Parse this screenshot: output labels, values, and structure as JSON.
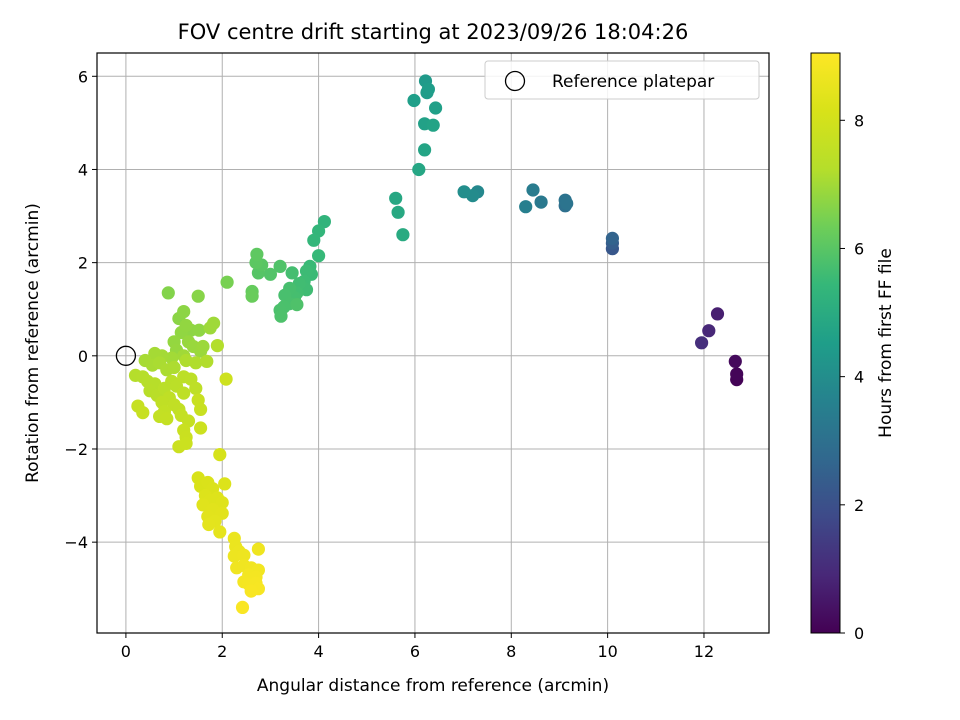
{
  "chart_data": {
    "type": "scatter",
    "title": "FOV centre drift starting at 2023/09/26 18:04:26",
    "xlabel": "Angular distance from reference (arcmin)",
    "ylabel": "Rotation from reference (arcmin)",
    "xlim": [
      -0.6,
      13.35
    ],
    "ylim": [
      -5.95,
      6.5
    ],
    "xticks": [
      0,
      2,
      4,
      6,
      8,
      10,
      12
    ],
    "yticks": [
      -4,
      -2,
      0,
      2,
      4,
      6
    ],
    "xtick_labels": [
      "0",
      "2",
      "4",
      "6",
      "8",
      "10",
      "12"
    ],
    "ytick_labels": [
      "−4",
      "−2",
      "0",
      "2",
      "4",
      "6"
    ],
    "grid": true,
    "legend": {
      "position": "top-right",
      "label": "Reference platepar"
    },
    "reference_point": {
      "x": 0,
      "y": 0
    },
    "colorbar": {
      "label": "Hours from first FF file",
      "colormap": "viridis",
      "lim": [
        0,
        9.05
      ],
      "ticks": [
        0,
        2,
        4,
        6,
        8
      ],
      "tick_labels": [
        "0",
        "2",
        "4",
        "6",
        "8"
      ]
    },
    "points": [
      {
        "x": 12.68,
        "y": -0.51,
        "c": 0.05
      },
      {
        "x": 12.68,
        "y": -0.39,
        "c": 0.1
      },
      {
        "x": 12.65,
        "y": -0.12,
        "c": 0.2
      },
      {
        "x": 12.28,
        "y": 0.9,
        "c": 0.7
      },
      {
        "x": 12.1,
        "y": 0.54,
        "c": 0.9
      },
      {
        "x": 11.95,
        "y": 0.28,
        "c": 1.1
      },
      {
        "x": 10.1,
        "y": 2.3,
        "c": 2.2
      },
      {
        "x": 10.1,
        "y": 2.42,
        "c": 2.4
      },
      {
        "x": 10.1,
        "y": 2.52,
        "c": 2.6
      },
      {
        "x": 9.12,
        "y": 3.22,
        "c": 3.0
      },
      {
        "x": 9.12,
        "y": 3.34,
        "c": 3.1
      },
      {
        "x": 9.15,
        "y": 3.27,
        "c": 3.15
      },
      {
        "x": 8.62,
        "y": 3.3,
        "c": 3.3
      },
      {
        "x": 8.45,
        "y": 3.56,
        "c": 3.4
      },
      {
        "x": 8.3,
        "y": 3.2,
        "c": 3.5
      },
      {
        "x": 7.3,
        "y": 3.52,
        "c": 3.8
      },
      {
        "x": 7.2,
        "y": 3.44,
        "c": 3.9
      },
      {
        "x": 7.02,
        "y": 3.52,
        "c": 4.0
      },
      {
        "x": 6.22,
        "y": 5.9,
        "c": 4.4
      },
      {
        "x": 6.25,
        "y": 5.65,
        "c": 4.45
      },
      {
        "x": 6.28,
        "y": 5.72,
        "c": 4.5
      },
      {
        "x": 5.98,
        "y": 5.48,
        "c": 4.55
      },
      {
        "x": 6.43,
        "y": 5.32,
        "c": 4.6
      },
      {
        "x": 6.2,
        "y": 4.98,
        "c": 4.65
      },
      {
        "x": 6.38,
        "y": 4.95,
        "c": 4.7
      },
      {
        "x": 6.2,
        "y": 4.42,
        "c": 4.75
      },
      {
        "x": 6.08,
        "y": 4.0,
        "c": 4.8
      },
      {
        "x": 5.6,
        "y": 3.38,
        "c": 4.85
      },
      {
        "x": 5.65,
        "y": 3.08,
        "c": 4.9
      },
      {
        "x": 5.75,
        "y": 2.6,
        "c": 4.95
      },
      {
        "x": 4.12,
        "y": 2.88,
        "c": 5.3
      },
      {
        "x": 4.0,
        "y": 2.68,
        "c": 5.35
      },
      {
        "x": 3.9,
        "y": 2.48,
        "c": 5.4
      },
      {
        "x": 4.0,
        "y": 2.15,
        "c": 5.45
      },
      {
        "x": 3.82,
        "y": 1.92,
        "c": 5.5
      },
      {
        "x": 3.85,
        "y": 1.75,
        "c": 5.52
      },
      {
        "x": 3.75,
        "y": 1.82,
        "c": 5.55
      },
      {
        "x": 3.7,
        "y": 1.6,
        "c": 5.58
      },
      {
        "x": 3.75,
        "y": 1.42,
        "c": 5.6
      },
      {
        "x": 3.6,
        "y": 1.55,
        "c": 5.62
      },
      {
        "x": 3.55,
        "y": 1.35,
        "c": 5.65
      },
      {
        "x": 3.45,
        "y": 1.78,
        "c": 5.68
      },
      {
        "x": 3.5,
        "y": 1.25,
        "c": 5.7
      },
      {
        "x": 3.4,
        "y": 1.45,
        "c": 5.72
      },
      {
        "x": 3.3,
        "y": 1.3,
        "c": 5.74
      },
      {
        "x": 3.4,
        "y": 1.12,
        "c": 5.76
      },
      {
        "x": 3.28,
        "y": 1.05,
        "c": 5.78
      },
      {
        "x": 3.2,
        "y": 0.98,
        "c": 5.8
      },
      {
        "x": 3.22,
        "y": 0.85,
        "c": 5.82
      },
      {
        "x": 3.55,
        "y": 1.1,
        "c": 5.84
      },
      {
        "x": 3.2,
        "y": 1.92,
        "c": 5.86
      },
      {
        "x": 3.0,
        "y": 1.75,
        "c": 5.9
      },
      {
        "x": 2.75,
        "y": 1.78,
        "c": 5.95
      },
      {
        "x": 2.82,
        "y": 1.95,
        "c": 6.0
      },
      {
        "x": 2.7,
        "y": 2.0,
        "c": 6.05
      },
      {
        "x": 2.72,
        "y": 2.18,
        "c": 6.1
      },
      {
        "x": 2.62,
        "y": 1.38,
        "c": 6.2
      },
      {
        "x": 2.62,
        "y": 1.28,
        "c": 6.25
      },
      {
        "x": 2.1,
        "y": 1.58,
        "c": 6.45
      },
      {
        "x": 0.88,
        "y": 1.35,
        "c": 6.6
      },
      {
        "x": 1.5,
        "y": 1.28,
        "c": 6.65
      },
      {
        "x": 1.1,
        "y": 0.8,
        "c": 6.7
      },
      {
        "x": 1.2,
        "y": 0.95,
        "c": 6.72
      },
      {
        "x": 1.35,
        "y": 0.55,
        "c": 6.74
      },
      {
        "x": 1.52,
        "y": 0.55,
        "c": 6.76
      },
      {
        "x": 1.15,
        "y": 0.5,
        "c": 6.78
      },
      {
        "x": 1.25,
        "y": 0.65,
        "c": 6.8
      },
      {
        "x": 1.0,
        "y": 0.3,
        "c": 6.82
      },
      {
        "x": 1.05,
        "y": 0.12,
        "c": 6.84
      },
      {
        "x": 1.3,
        "y": 0.3,
        "c": 6.86
      },
      {
        "x": 1.4,
        "y": 0.2,
        "c": 6.88
      },
      {
        "x": 1.55,
        "y": 0.1,
        "c": 6.9
      },
      {
        "x": 1.6,
        "y": 0.2,
        "c": 6.92
      },
      {
        "x": 1.75,
        "y": 0.6,
        "c": 6.94
      },
      {
        "x": 1.82,
        "y": 0.7,
        "c": 6.96
      },
      {
        "x": 1.2,
        "y": 0.0,
        "c": 6.98
      },
      {
        "x": 0.95,
        "y": -0.05,
        "c": 7.0
      },
      {
        "x": 0.75,
        "y": 0.0,
        "c": 7.02
      },
      {
        "x": 0.6,
        "y": 0.05,
        "c": 7.04
      },
      {
        "x": 0.4,
        "y": -0.1,
        "c": 7.06
      },
      {
        "x": 0.55,
        "y": -0.2,
        "c": 7.08
      },
      {
        "x": 0.7,
        "y": -0.15,
        "c": 7.1
      },
      {
        "x": 0.85,
        "y": -0.3,
        "c": 7.12
      },
      {
        "x": 1.0,
        "y": -0.25,
        "c": 7.14
      },
      {
        "x": 1.25,
        "y": -0.1,
        "c": 7.16
      },
      {
        "x": 1.45,
        "y": -0.15,
        "c": 7.18
      },
      {
        "x": 1.68,
        "y": -0.12,
        "c": 7.2
      },
      {
        "x": 1.9,
        "y": 0.22,
        "c": 7.22
      },
      {
        "x": 0.2,
        "y": -0.42,
        "c": 7.24
      },
      {
        "x": 0.35,
        "y": -0.45,
        "c": 7.26
      },
      {
        "x": 0.45,
        "y": -0.55,
        "c": 7.28
      },
      {
        "x": 0.6,
        "y": -0.6,
        "c": 7.3
      },
      {
        "x": 0.5,
        "y": -0.75,
        "c": 7.32
      },
      {
        "x": 0.65,
        "y": -0.85,
        "c": 7.34
      },
      {
        "x": 0.8,
        "y": -0.7,
        "c": 7.36
      },
      {
        "x": 0.95,
        "y": -0.55,
        "c": 7.38
      },
      {
        "x": 1.05,
        "y": -0.65,
        "c": 7.4
      },
      {
        "x": 1.2,
        "y": -0.45,
        "c": 7.42
      },
      {
        "x": 1.35,
        "y": -0.5,
        "c": 7.44
      },
      {
        "x": 1.45,
        "y": -0.7,
        "c": 7.46
      },
      {
        "x": 1.2,
        "y": -0.8,
        "c": 7.48
      },
      {
        "x": 0.9,
        "y": -0.9,
        "c": 7.5
      },
      {
        "x": 0.75,
        "y": -1.0,
        "c": 7.52
      },
      {
        "x": 1.0,
        "y": -1.05,
        "c": 7.54
      },
      {
        "x": 1.1,
        "y": -1.15,
        "c": 7.56
      },
      {
        "x": 0.8,
        "y": -1.2,
        "c": 7.58
      },
      {
        "x": 0.7,
        "y": -1.3,
        "c": 7.6
      },
      {
        "x": 0.85,
        "y": -1.35,
        "c": 7.62
      },
      {
        "x": 1.15,
        "y": -1.28,
        "c": 7.64
      },
      {
        "x": 1.3,
        "y": -1.4,
        "c": 7.66
      },
      {
        "x": 0.25,
        "y": -1.08,
        "c": 7.68
      },
      {
        "x": 0.35,
        "y": -1.22,
        "c": 7.7
      },
      {
        "x": 1.5,
        "y": -0.95,
        "c": 7.72
      },
      {
        "x": 1.55,
        "y": -1.15,
        "c": 7.74
      },
      {
        "x": 1.2,
        "y": -1.6,
        "c": 7.76
      },
      {
        "x": 1.25,
        "y": -1.75,
        "c": 7.78
      },
      {
        "x": 1.1,
        "y": -1.95,
        "c": 7.8
      },
      {
        "x": 1.25,
        "y": -1.88,
        "c": 7.82
      },
      {
        "x": 1.55,
        "y": -1.55,
        "c": 7.84
      },
      {
        "x": 2.08,
        "y": -0.5,
        "c": 7.86
      },
      {
        "x": 1.95,
        "y": -2.12,
        "c": 8.1
      },
      {
        "x": 1.5,
        "y": -2.62,
        "c": 8.15
      },
      {
        "x": 1.55,
        "y": -2.8,
        "c": 8.18
      },
      {
        "x": 1.7,
        "y": -2.72,
        "c": 8.2
      },
      {
        "x": 1.8,
        "y": -2.85,
        "c": 8.22
      },
      {
        "x": 2.05,
        "y": -2.75,
        "c": 8.24
      },
      {
        "x": 1.65,
        "y": -3.0,
        "c": 8.26
      },
      {
        "x": 1.75,
        "y": -3.1,
        "c": 8.28
      },
      {
        "x": 1.9,
        "y": -3.05,
        "c": 8.3
      },
      {
        "x": 2.0,
        "y": -3.15,
        "c": 8.32
      },
      {
        "x": 1.6,
        "y": -3.2,
        "c": 8.34
      },
      {
        "x": 1.8,
        "y": -3.3,
        "c": 8.36
      },
      {
        "x": 2.0,
        "y": -3.38,
        "c": 8.38
      },
      {
        "x": 1.7,
        "y": -3.45,
        "c": 8.4
      },
      {
        "x": 1.85,
        "y": -3.55,
        "c": 8.42
      },
      {
        "x": 1.72,
        "y": -3.62,
        "c": 8.44
      },
      {
        "x": 1.95,
        "y": -3.78,
        "c": 8.46
      },
      {
        "x": 2.25,
        "y": -3.92,
        "c": 8.6
      },
      {
        "x": 2.28,
        "y": -4.1,
        "c": 8.62
      },
      {
        "x": 2.35,
        "y": -4.2,
        "c": 8.64
      },
      {
        "x": 2.25,
        "y": -4.3,
        "c": 8.66
      },
      {
        "x": 2.45,
        "y": -4.28,
        "c": 8.68
      },
      {
        "x": 2.75,
        "y": -4.15,
        "c": 8.7
      },
      {
        "x": 2.3,
        "y": -4.55,
        "c": 8.72
      },
      {
        "x": 2.45,
        "y": -4.5,
        "c": 8.74
      },
      {
        "x": 2.6,
        "y": -4.55,
        "c": 8.76
      },
      {
        "x": 2.75,
        "y": -4.6,
        "c": 8.78
      },
      {
        "x": 2.55,
        "y": -4.7,
        "c": 8.8
      },
      {
        "x": 2.7,
        "y": -4.75,
        "c": 8.82
      },
      {
        "x": 2.45,
        "y": -4.85,
        "c": 8.84
      },
      {
        "x": 2.55,
        "y": -4.9,
        "c": 8.86
      },
      {
        "x": 2.7,
        "y": -4.88,
        "c": 8.88
      },
      {
        "x": 2.75,
        "y": -5.0,
        "c": 8.9
      },
      {
        "x": 2.6,
        "y": -5.05,
        "c": 8.92
      },
      {
        "x": 2.42,
        "y": -5.4,
        "c": 8.95
      }
    ]
  }
}
